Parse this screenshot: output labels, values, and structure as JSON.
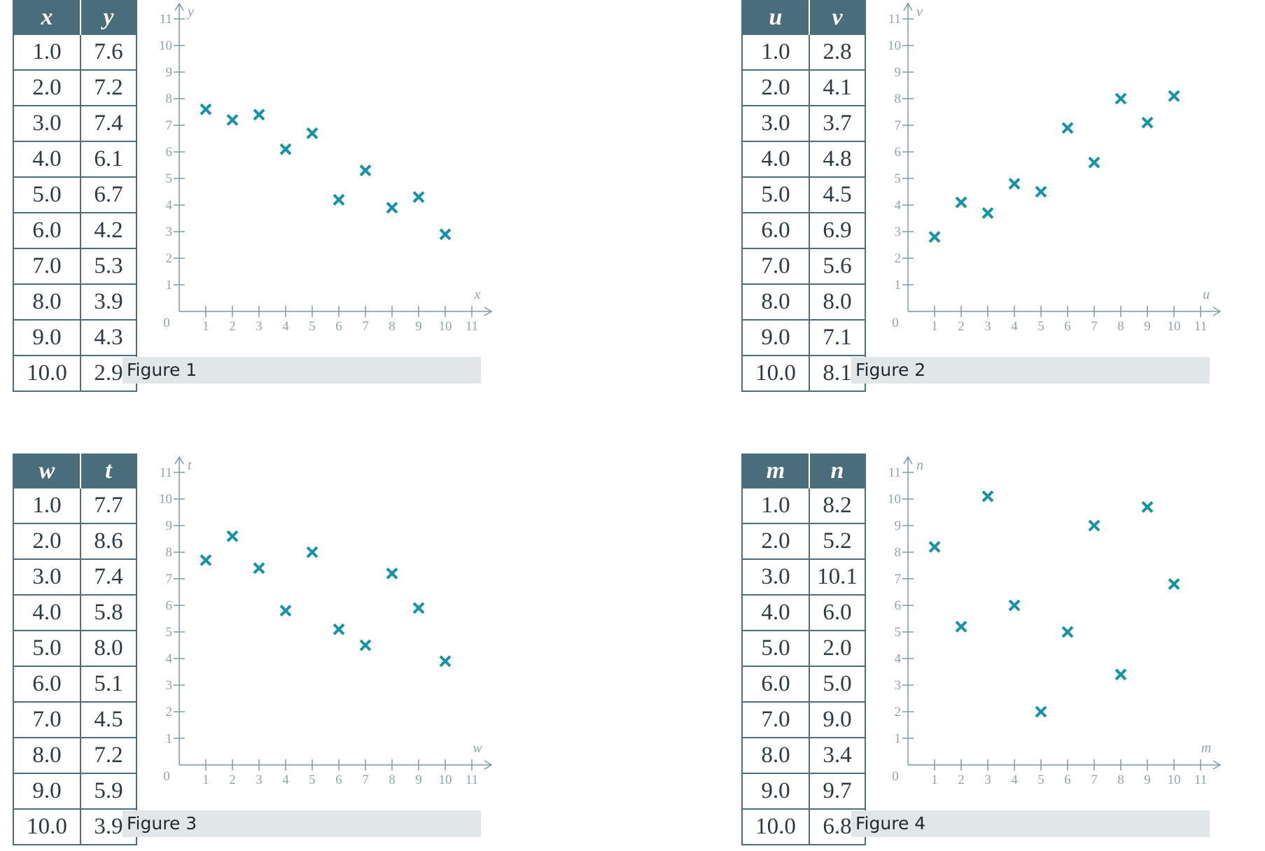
{
  "chart_data": [
    {
      "type": "scatter",
      "caption": "Figure 1",
      "xlabel": "x",
      "ylabel": "y",
      "columns": [
        "x",
        "y"
      ],
      "rows": [
        [
          "1.0",
          "7.6"
        ],
        [
          "2.0",
          "7.2"
        ],
        [
          "3.0",
          "7.4"
        ],
        [
          "4.0",
          "6.1"
        ],
        [
          "5.0",
          "6.7"
        ],
        [
          "6.0",
          "4.2"
        ],
        [
          "7.0",
          "5.3"
        ],
        [
          "8.0",
          "3.9"
        ],
        [
          "9.0",
          "4.3"
        ],
        [
          "10.0",
          "2.9"
        ]
      ],
      "x": [
        1,
        2,
        3,
        4,
        5,
        6,
        7,
        8,
        9,
        10
      ],
      "y": [
        7.6,
        7.2,
        7.4,
        6.1,
        6.7,
        4.2,
        5.3,
        3.9,
        4.3,
        2.9
      ],
      "xlim": [
        0,
        11
      ],
      "ylim": [
        0,
        11
      ],
      "xticks": [
        "1",
        "2",
        "3",
        "4",
        "5",
        "6",
        "7",
        "8",
        "9",
        "10",
        "11"
      ],
      "yticks": [
        "1",
        "2",
        "3",
        "4",
        "5",
        "6",
        "7",
        "8",
        "9",
        "10",
        "11"
      ],
      "origin_label": "0",
      "marker": "x",
      "color": "#1593a8",
      "grid": false
    },
    {
      "type": "scatter",
      "caption": "Figure 2",
      "xlabel": "u",
      "ylabel": "v",
      "columns": [
        "u",
        "v"
      ],
      "rows": [
        [
          "1.0",
          "2.8"
        ],
        [
          "2.0",
          "4.1"
        ],
        [
          "3.0",
          "3.7"
        ],
        [
          "4.0",
          "4.8"
        ],
        [
          "5.0",
          "4.5"
        ],
        [
          "6.0",
          "6.9"
        ],
        [
          "7.0",
          "5.6"
        ],
        [
          "8.0",
          "8.0"
        ],
        [
          "9.0",
          "7.1"
        ],
        [
          "10.0",
          "8.1"
        ]
      ],
      "x": [
        1,
        2,
        3,
        4,
        5,
        6,
        7,
        8,
        9,
        10
      ],
      "y": [
        2.8,
        4.1,
        3.7,
        4.8,
        4.5,
        6.9,
        5.6,
        8.0,
        7.1,
        8.1
      ],
      "xlim": [
        0,
        11
      ],
      "ylim": [
        0,
        11
      ],
      "xticks": [
        "1",
        "2",
        "3",
        "4",
        "5",
        "6",
        "7",
        "8",
        "9",
        "10",
        "11"
      ],
      "yticks": [
        "1",
        "2",
        "3",
        "4",
        "5",
        "6",
        "7",
        "8",
        "9",
        "10",
        "11"
      ],
      "origin_label": "0",
      "marker": "x",
      "color": "#1593a8",
      "grid": false
    },
    {
      "type": "scatter",
      "caption": "Figure 3",
      "xlabel": "w",
      "ylabel": "t",
      "columns": [
        "w",
        "t"
      ],
      "rows": [
        [
          "1.0",
          "7.7"
        ],
        [
          "2.0",
          "8.6"
        ],
        [
          "3.0",
          "7.4"
        ],
        [
          "4.0",
          "5.8"
        ],
        [
          "5.0",
          "8.0"
        ],
        [
          "6.0",
          "5.1"
        ],
        [
          "7.0",
          "4.5"
        ],
        [
          "8.0",
          "7.2"
        ],
        [
          "9.0",
          "5.9"
        ],
        [
          "10.0",
          "3.9"
        ]
      ],
      "x": [
        1,
        2,
        3,
        4,
        5,
        6,
        7,
        8,
        9,
        10
      ],
      "y": [
        7.7,
        8.6,
        7.4,
        5.8,
        8.0,
        5.1,
        4.5,
        7.2,
        5.9,
        3.9
      ],
      "xlim": [
        0,
        11
      ],
      "ylim": [
        0,
        11
      ],
      "xticks": [
        "1",
        "2",
        "3",
        "4",
        "5",
        "6",
        "7",
        "8",
        "9",
        "10",
        "11"
      ],
      "yticks": [
        "1",
        "2",
        "3",
        "4",
        "5",
        "6",
        "7",
        "8",
        "9",
        "10",
        "11"
      ],
      "origin_label": "0",
      "marker": "x",
      "color": "#1593a8",
      "grid": false
    },
    {
      "type": "scatter",
      "caption": "Figure 4",
      "xlabel": "m",
      "ylabel": "n",
      "columns": [
        "m",
        "n"
      ],
      "rows": [
        [
          "1.0",
          "8.2"
        ],
        [
          "2.0",
          "5.2"
        ],
        [
          "3.0",
          "10.1"
        ],
        [
          "4.0",
          "6.0"
        ],
        [
          "5.0",
          "2.0"
        ],
        [
          "6.0",
          "5.0"
        ],
        [
          "7.0",
          "9.0"
        ],
        [
          "8.0",
          "3.4"
        ],
        [
          "9.0",
          "9.7"
        ],
        [
          "10.0",
          "6.8"
        ]
      ],
      "x": [
        1,
        2,
        3,
        4,
        5,
        6,
        7,
        8,
        9,
        10
      ],
      "y": [
        8.2,
        5.2,
        10.1,
        6.0,
        2.0,
        5.0,
        9.0,
        3.4,
        9.7,
        6.8
      ],
      "xlim": [
        0,
        11
      ],
      "ylim": [
        0,
        11
      ],
      "xticks": [
        "1",
        "2",
        "3",
        "4",
        "5",
        "6",
        "7",
        "8",
        "9",
        "10",
        "11"
      ],
      "yticks": [
        "1",
        "2",
        "3",
        "4",
        "5",
        "6",
        "7",
        "8",
        "9",
        "10",
        "11"
      ],
      "origin_label": "0",
      "marker": "x",
      "color": "#1593a8",
      "grid": false
    }
  ]
}
